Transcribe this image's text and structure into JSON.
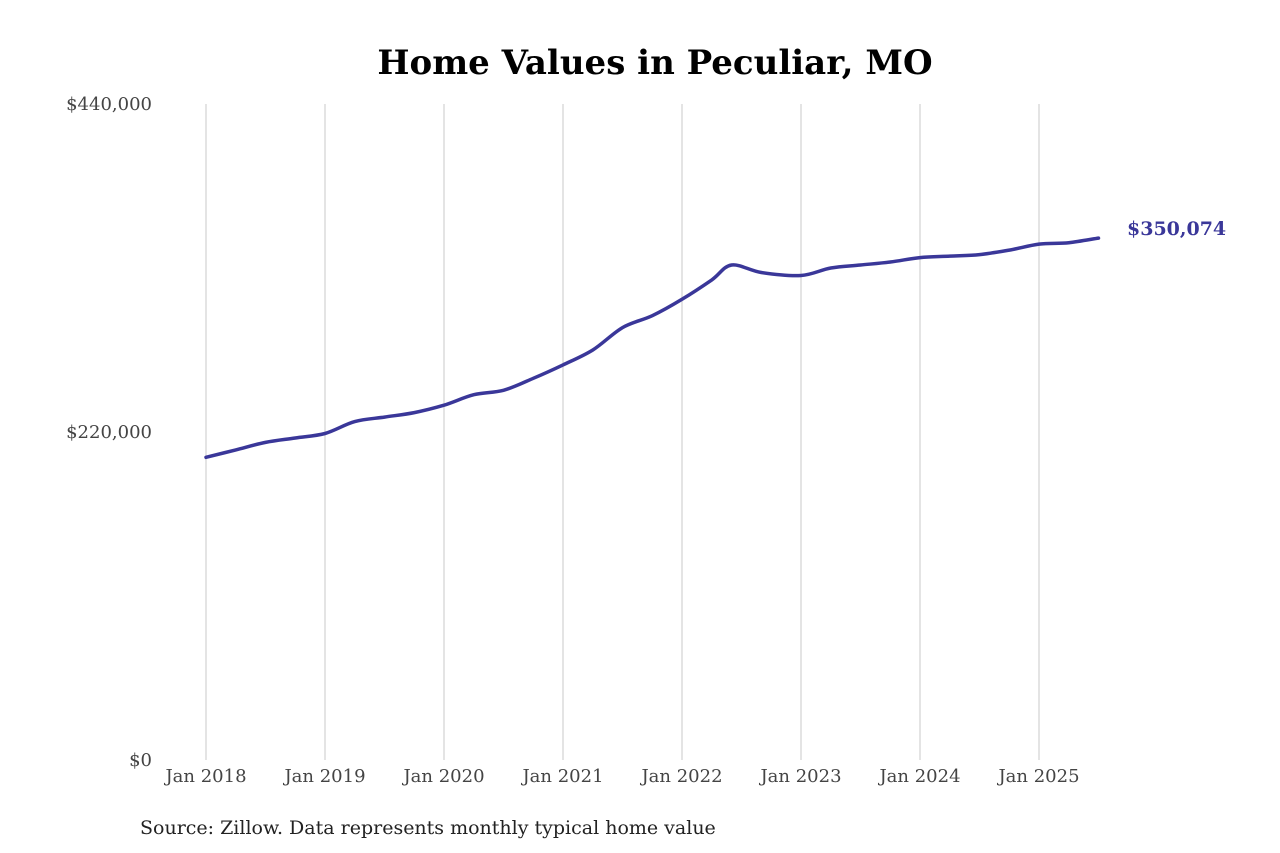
{
  "chart_data": {
    "type": "line",
    "title": "Home Values in Peculiar, MO",
    "xlabel": "",
    "ylabel": "",
    "ylim": [
      0,
      440000
    ],
    "y_ticks": [
      0,
      220000,
      440000
    ],
    "y_tick_labels": [
      "$0",
      "$220,000",
      "$440,000"
    ],
    "x_ticks": [
      "2018-01",
      "2019-01",
      "2020-01",
      "2021-01",
      "2022-01",
      "2023-01",
      "2024-01",
      "2025-01"
    ],
    "x_tick_labels": [
      "Jan 2018",
      "Jan 2019",
      "Jan 2020",
      "Jan 2021",
      "Jan 2022",
      "Jan 2023",
      "Jan 2024",
      "Jan 2025"
    ],
    "grid": "vertical",
    "line_color": "#3a3799",
    "series": [
      {
        "x": [
          "2018-01",
          "2018-04",
          "2018-07",
          "2018-10",
          "2019-01",
          "2019-04",
          "2019-07",
          "2019-10",
          "2020-01",
          "2020-04",
          "2020-07",
          "2020-10",
          "2021-01",
          "2021-04",
          "2021-07",
          "2021-10",
          "2022-01",
          "2022-04",
          "2022-06",
          "2022-09",
          "2023-01",
          "2023-04",
          "2023-07",
          "2023-10",
          "2024-01",
          "2024-04",
          "2024-07",
          "2024-10",
          "2025-01",
          "2025-04",
          "2025-07"
        ],
        "values": [
          203000,
          208000,
          213000,
          216000,
          219000,
          227000,
          230000,
          233000,
          238000,
          245000,
          248000,
          256000,
          265000,
          275000,
          290000,
          298000,
          309000,
          322000,
          332000,
          327000,
          325000,
          330000,
          332000,
          334000,
          337000,
          338000,
          339000,
          342000,
          346000,
          347000,
          350074
        ]
      }
    ],
    "end_label": "$350,074",
    "source": "Source: Zillow. Data represents monthly typical home value"
  }
}
